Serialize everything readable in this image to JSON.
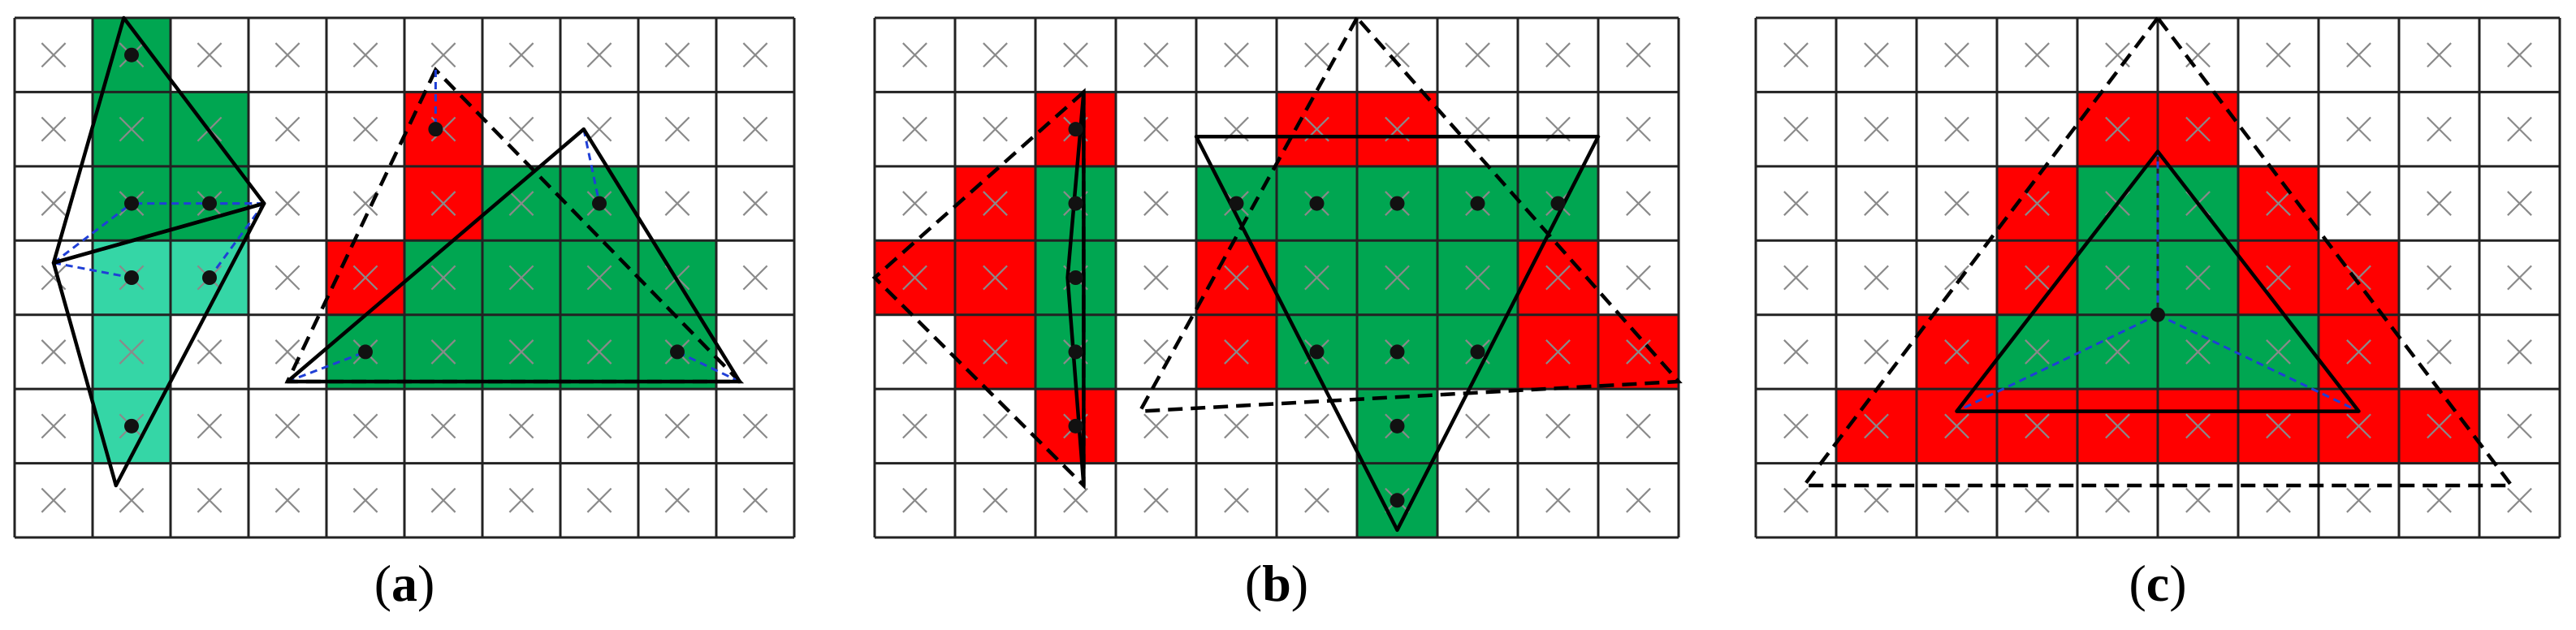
{
  "colors": {
    "background": "#ffffff",
    "grid_line": "#222222",
    "cross_mark": "#8a8a8a",
    "fill_green": "#00a651",
    "fill_teal": "#35d6a6",
    "fill_red": "#ff0000",
    "solid_triangle": "#000000",
    "dashed_triangle": "#000000",
    "blue_dashed_link": "#1f3fd6",
    "sample_dot": "#111111"
  },
  "panels": [
    {
      "caption": "(a)",
      "caption_letter": "a",
      "grid": {
        "cols": 10,
        "rows": 7
      },
      "cells": [
        {
          "c": 1,
          "r": 0,
          "fill": "green"
        },
        {
          "c": 1,
          "r": 1,
          "fill": "green"
        },
        {
          "c": 2,
          "r": 1,
          "fill": "green"
        },
        {
          "c": 1,
          "r": 2,
          "fill": "green"
        },
        {
          "c": 2,
          "r": 2,
          "fill": "green"
        },
        {
          "c": 1,
          "r": 3,
          "fill": "teal"
        },
        {
          "c": 2,
          "r": 3,
          "fill": "teal"
        },
        {
          "c": 1,
          "r": 4,
          "fill": "teal"
        },
        {
          "c": 1,
          "r": 5,
          "fill": "teal"
        },
        {
          "c": 5,
          "r": 1,
          "fill": "red"
        },
        {
          "c": 5,
          "r": 2,
          "fill": "red"
        },
        {
          "c": 6,
          "r": 2,
          "fill": "green"
        },
        {
          "c": 7,
          "r": 2,
          "fill": "green"
        },
        {
          "c": 4,
          "r": 3,
          "fill": "red"
        },
        {
          "c": 5,
          "r": 3,
          "fill": "green"
        },
        {
          "c": 6,
          "r": 3,
          "fill": "green"
        },
        {
          "c": 7,
          "r": 3,
          "fill": "green"
        },
        {
          "c": 8,
          "r": 3,
          "fill": "green"
        },
        {
          "c": 4,
          "r": 4,
          "fill": "green"
        },
        {
          "c": 5,
          "r": 4,
          "fill": "green"
        },
        {
          "c": 6,
          "r": 4,
          "fill": "green"
        },
        {
          "c": 7,
          "r": 4,
          "fill": "green"
        },
        {
          "c": 8,
          "r": 4,
          "fill": "green"
        }
      ],
      "solid_triangles": [
        [
          [
            1.4,
            0.0
          ],
          [
            3.2,
            2.5
          ],
          [
            0.5,
            3.3
          ]
        ],
        [
          [
            0.5,
            3.3
          ],
          [
            3.2,
            2.5
          ],
          [
            1.3,
            6.3
          ]
        ],
        [
          [
            3.5,
            4.9
          ],
          [
            7.3,
            1.5
          ],
          [
            9.3,
            4.9
          ]
        ]
      ],
      "dashed_triangles": [
        [
          [
            5.4,
            0.7
          ],
          [
            3.5,
            4.9
          ],
          [
            9.3,
            4.9
          ]
        ]
      ],
      "dots": [
        [
          1.5,
          0.5
        ],
        [
          1.5,
          2.5
        ],
        [
          2.5,
          2.5
        ],
        [
          1.5,
          3.5
        ],
        [
          2.5,
          3.5
        ],
        [
          1.5,
          5.5
        ],
        [
          5.4,
          1.5
        ],
        [
          7.5,
          2.5
        ],
        [
          4.5,
          4.5
        ],
        [
          8.5,
          4.5
        ]
      ],
      "links": [
        [
          [
            3.2,
            2.5
          ],
          [
            1.5,
            2.5
          ]
        ],
        [
          [
            3.2,
            2.5
          ],
          [
            2.5,
            2.5
          ]
        ],
        [
          [
            3.2,
            2.5
          ],
          [
            2.5,
            3.5
          ]
        ],
        [
          [
            0.5,
            3.3
          ],
          [
            1.5,
            2.5
          ]
        ],
        [
          [
            0.5,
            3.3
          ],
          [
            1.5,
            3.5
          ]
        ],
        [
          [
            5.4,
            0.7
          ],
          [
            5.4,
            1.5
          ]
        ],
        [
          [
            7.3,
            1.5
          ],
          [
            7.5,
            2.5
          ]
        ],
        [
          [
            3.5,
            4.9
          ],
          [
            4.5,
            4.5
          ]
        ],
        [
          [
            9.3,
            4.9
          ],
          [
            8.5,
            4.5
          ]
        ]
      ]
    },
    {
      "caption": "(b)",
      "caption_letter": "b",
      "grid": {
        "cols": 10,
        "rows": 7
      },
      "cells": [
        {
          "c": 2,
          "r": 1,
          "fill": "red"
        },
        {
          "c": 5,
          "r": 1,
          "fill": "red"
        },
        {
          "c": 6,
          "r": 1,
          "fill": "red"
        },
        {
          "c": 1,
          "r": 2,
          "fill": "red"
        },
        {
          "c": 2,
          "r": 2,
          "fill": "green"
        },
        {
          "c": 4,
          "r": 2,
          "fill": "green"
        },
        {
          "c": 5,
          "r": 2,
          "fill": "green"
        },
        {
          "c": 6,
          "r": 2,
          "fill": "green"
        },
        {
          "c": 7,
          "r": 2,
          "fill": "green"
        },
        {
          "c": 8,
          "r": 2,
          "fill": "green"
        },
        {
          "c": 0,
          "r": 3,
          "fill": "red"
        },
        {
          "c": 1,
          "r": 3,
          "fill": "red"
        },
        {
          "c": 2,
          "r": 3,
          "fill": "green"
        },
        {
          "c": 4,
          "r": 3,
          "fill": "red"
        },
        {
          "c": 5,
          "r": 3,
          "fill": "green"
        },
        {
          "c": 6,
          "r": 3,
          "fill": "green"
        },
        {
          "c": 7,
          "r": 3,
          "fill": "green"
        },
        {
          "c": 8,
          "r": 3,
          "fill": "red"
        },
        {
          "c": 1,
          "r": 4,
          "fill": "red"
        },
        {
          "c": 2,
          "r": 4,
          "fill": "green"
        },
        {
          "c": 4,
          "r": 4,
          "fill": "red"
        },
        {
          "c": 5,
          "r": 4,
          "fill": "green"
        },
        {
          "c": 6,
          "r": 4,
          "fill": "green"
        },
        {
          "c": 7,
          "r": 4,
          "fill": "green"
        },
        {
          "c": 8,
          "r": 4,
          "fill": "red"
        },
        {
          "c": 9,
          "r": 4,
          "fill": "red"
        },
        {
          "c": 2,
          "r": 5,
          "fill": "red"
        },
        {
          "c": 6,
          "r": 5,
          "fill": "green"
        },
        {
          "c": 6,
          "r": 6,
          "fill": "green"
        }
      ],
      "solid_triangles": [
        [
          [
            2.6,
            1.0
          ],
          [
            2.4,
            3.5
          ],
          [
            2.6,
            6.3
          ]
        ],
        [
          [
            4.0,
            1.6
          ],
          [
            9.0,
            1.6
          ],
          [
            6.5,
            6.9
          ]
        ]
      ],
      "dashed_triangles": [
        [
          [
            2.6,
            1.0
          ],
          [
            0.0,
            3.5
          ],
          [
            2.6,
            6.3
          ]
        ],
        [
          [
            6.0,
            0.0
          ],
          [
            3.3,
            5.3
          ],
          [
            10.0,
            4.9
          ]
        ]
      ],
      "dots": [
        [
          2.5,
          1.5
        ],
        [
          2.5,
          2.5
        ],
        [
          2.5,
          3.5
        ],
        [
          2.5,
          4.5
        ],
        [
          2.5,
          5.5
        ],
        [
          4.5,
          2.5
        ],
        [
          5.5,
          2.5
        ],
        [
          6.5,
          2.5
        ],
        [
          7.5,
          2.5
        ],
        [
          8.5,
          2.5
        ],
        [
          5.5,
          4.5
        ],
        [
          6.5,
          4.5
        ],
        [
          7.5,
          4.5
        ],
        [
          6.5,
          5.5
        ],
        [
          6.5,
          6.5
        ]
      ],
      "links": []
    },
    {
      "caption": "(c)",
      "caption_letter": "c",
      "grid": {
        "cols": 10,
        "rows": 7
      },
      "cells": [
        {
          "c": 4,
          "r": 1,
          "fill": "red"
        },
        {
          "c": 5,
          "r": 1,
          "fill": "red"
        },
        {
          "c": 3,
          "r": 2,
          "fill": "red"
        },
        {
          "c": 4,
          "r": 2,
          "fill": "green"
        },
        {
          "c": 5,
          "r": 2,
          "fill": "green"
        },
        {
          "c": 6,
          "r": 2,
          "fill": "red"
        },
        {
          "c": 3,
          "r": 3,
          "fill": "red"
        },
        {
          "c": 4,
          "r": 3,
          "fill": "green"
        },
        {
          "c": 5,
          "r": 3,
          "fill": "green"
        },
        {
          "c": 6,
          "r": 3,
          "fill": "red"
        },
        {
          "c": 7,
          "r": 3,
          "fill": "red"
        },
        {
          "c": 2,
          "r": 4,
          "fill": "red"
        },
        {
          "c": 3,
          "r": 4,
          "fill": "green"
        },
        {
          "c": 4,
          "r": 4,
          "fill": "green"
        },
        {
          "c": 5,
          "r": 4,
          "fill": "green"
        },
        {
          "c": 6,
          "r": 4,
          "fill": "green"
        },
        {
          "c": 7,
          "r": 4,
          "fill": "red"
        },
        {
          "c": 1,
          "r": 5,
          "fill": "red"
        },
        {
          "c": 2,
          "r": 5,
          "fill": "red"
        },
        {
          "c": 3,
          "r": 5,
          "fill": "red"
        },
        {
          "c": 4,
          "r": 5,
          "fill": "red"
        },
        {
          "c": 5,
          "r": 5,
          "fill": "red"
        },
        {
          "c": 6,
          "r": 5,
          "fill": "red"
        },
        {
          "c": 7,
          "r": 5,
          "fill": "red"
        },
        {
          "c": 8,
          "r": 5,
          "fill": "red"
        }
      ],
      "solid_triangles": [
        [
          [
            5.0,
            1.8
          ],
          [
            2.5,
            5.3
          ],
          [
            7.5,
            5.3
          ]
        ]
      ],
      "dashed_triangles": [
        [
          [
            5.0,
            0.0
          ],
          [
            0.6,
            6.3
          ],
          [
            9.4,
            6.3
          ]
        ]
      ],
      "dots": [
        [
          5.0,
          4.0
        ]
      ],
      "links": [
        [
          [
            5.0,
            4.0
          ],
          [
            5.0,
            1.8
          ]
        ],
        [
          [
            5.0,
            4.0
          ],
          [
            2.5,
            5.3
          ]
        ],
        [
          [
            5.0,
            4.0
          ],
          [
            7.5,
            5.3
          ]
        ]
      ]
    }
  ]
}
